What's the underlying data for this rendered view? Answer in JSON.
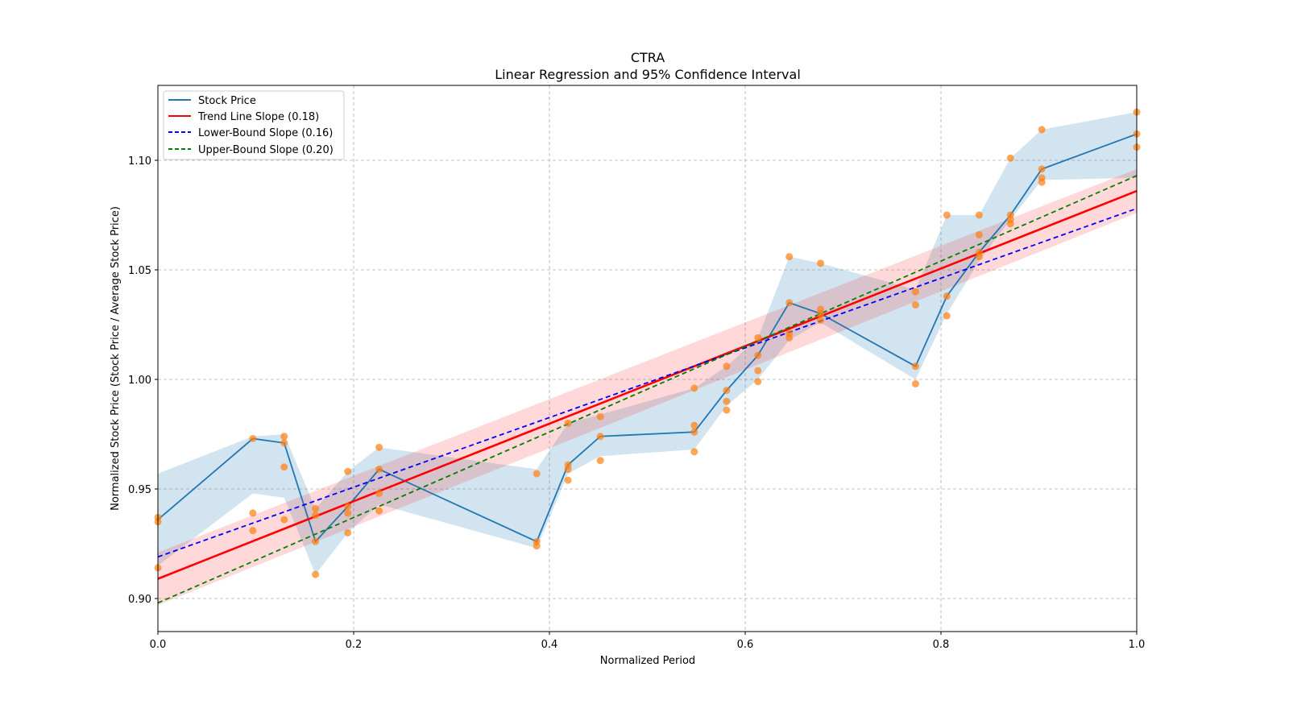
{
  "chart_data": {
    "type": "line",
    "title": "CTRA",
    "subtitle": "Linear Regression and 95% Confidence Interval",
    "xlabel": "Normalized Period",
    "ylabel": "Normalized Stock Price (Stock Price / Average Stock Price)",
    "xlim": [
      0.0,
      1.0
    ],
    "ylim": [
      0.885,
      1.134
    ],
    "xticks": [
      0.0,
      0.2,
      0.4,
      0.6,
      0.8,
      1.0
    ],
    "xtick_labels": [
      "0.0",
      "0.2",
      "0.4",
      "0.6",
      "0.8",
      "1.0"
    ],
    "yticks": [
      0.9,
      0.95,
      1.0,
      1.05,
      1.1
    ],
    "ytick_labels": [
      "0.90",
      "0.95",
      "1.00",
      "1.05",
      "1.10"
    ],
    "grid": true,
    "legend_position": "top-left",
    "legend": [
      {
        "label": "Stock Price",
        "color": "#1f77b4",
        "style": "solid"
      },
      {
        "label": "Trend Line Slope (0.18)",
        "color": "#ff0000",
        "style": "solid"
      },
      {
        "label": "Lower-Bound Slope (0.16)",
        "color": "#0000ff",
        "style": "dashed"
      },
      {
        "label": "Upper-Bound Slope (0.20)",
        "color": "#008000",
        "style": "dashed"
      }
    ],
    "colors": {
      "stock": "#1f77b4",
      "stock_band": "#1f77b4",
      "scatter": "#ff7f0e",
      "trend": "#ff0000",
      "trend_band": "#ff0000",
      "lower": "#0000ff",
      "upper": "#008000",
      "grid": "#b0b0b0"
    },
    "stock_price": {
      "x": [
        0.0,
        0.097,
        0.129,
        0.161,
        0.194,
        0.226,
        0.387,
        0.419,
        0.452,
        0.548,
        0.581,
        0.613,
        0.645,
        0.677,
        0.774,
        0.806,
        0.839,
        0.871,
        0.903,
        1.0
      ],
      "y": [
        0.936,
        0.973,
        0.971,
        0.926,
        0.942,
        0.959,
        0.926,
        0.961,
        0.974,
        0.976,
        0.995,
        1.011,
        1.035,
        1.03,
        1.006,
        1.038,
        1.058,
        1.075,
        1.096,
        1.112
      ],
      "band_low": [
        0.915,
        0.948,
        0.946,
        0.911,
        0.93,
        0.943,
        0.923,
        0.957,
        0.965,
        0.968,
        0.988,
        1.0,
        1.018,
        1.026,
        1.0,
        1.03,
        1.054,
        1.073,
        1.091,
        1.092
      ],
      "band_high": [
        0.957,
        0.974,
        0.975,
        0.941,
        0.958,
        0.969,
        0.959,
        0.98,
        0.984,
        0.996,
        1.006,
        1.019,
        1.056,
        1.053,
        1.041,
        1.075,
        1.075,
        1.101,
        1.114,
        1.122
      ]
    },
    "scatter": {
      "x": [
        0.0,
        0.0,
        0.0,
        0.097,
        0.097,
        0.097,
        0.129,
        0.129,
        0.129,
        0.129,
        0.161,
        0.161,
        0.161,
        0.161,
        0.194,
        0.194,
        0.194,
        0.194,
        0.226,
        0.226,
        0.226,
        0.226,
        0.387,
        0.387,
        0.387,
        0.419,
        0.419,
        0.419,
        0.419,
        0.452,
        0.452,
        0.452,
        0.548,
        0.548,
        0.548,
        0.548,
        0.581,
        0.581,
        0.581,
        0.581,
        0.613,
        0.613,
        0.613,
        0.613,
        0.645,
        0.645,
        0.645,
        0.645,
        0.677,
        0.677,
        0.677,
        0.677,
        0.774,
        0.774,
        0.774,
        0.774,
        0.806,
        0.806,
        0.806,
        0.839,
        0.839,
        0.839,
        0.839,
        0.871,
        0.871,
        0.871,
        0.871,
        0.903,
        0.903,
        0.903,
        0.903,
        1.0,
        1.0,
        1.0
      ],
      "y": [
        0.937,
        0.935,
        0.914,
        0.973,
        0.939,
        0.931,
        0.974,
        0.971,
        0.96,
        0.936,
        0.941,
        0.938,
        0.926,
        0.911,
        0.958,
        0.942,
        0.939,
        0.93,
        0.969,
        0.959,
        0.948,
        0.94,
        0.957,
        0.926,
        0.924,
        0.98,
        0.961,
        0.959,
        0.954,
        0.983,
        0.974,
        0.963,
        0.996,
        0.979,
        0.976,
        0.967,
        1.006,
        0.995,
        0.99,
        0.986,
        1.019,
        1.011,
        1.004,
        0.999,
        1.056,
        1.035,
        1.021,
        1.019,
        1.053,
        1.032,
        1.03,
        1.027,
        1.04,
        1.034,
        1.006,
        0.998,
        1.075,
        1.038,
        1.029,
        1.075,
        1.066,
        1.058,
        1.056,
        1.101,
        1.075,
        1.073,
        1.071,
        1.114,
        1.096,
        1.092,
        1.09,
        1.122,
        1.112,
        1.106
      ]
    },
    "trend_line": {
      "x": [
        0.0,
        1.0
      ],
      "y": [
        0.909,
        1.086
      ],
      "band_low": [
        0.897,
        1.076
      ],
      "band_high": [
        0.921,
        1.096
      ]
    },
    "lower_bound_line": {
      "x": [
        0.0,
        1.0
      ],
      "y": [
        0.919,
        1.078
      ]
    },
    "upper_bound_line": {
      "x": [
        0.0,
        1.0
      ],
      "y": [
        0.898,
        1.093
      ]
    }
  }
}
